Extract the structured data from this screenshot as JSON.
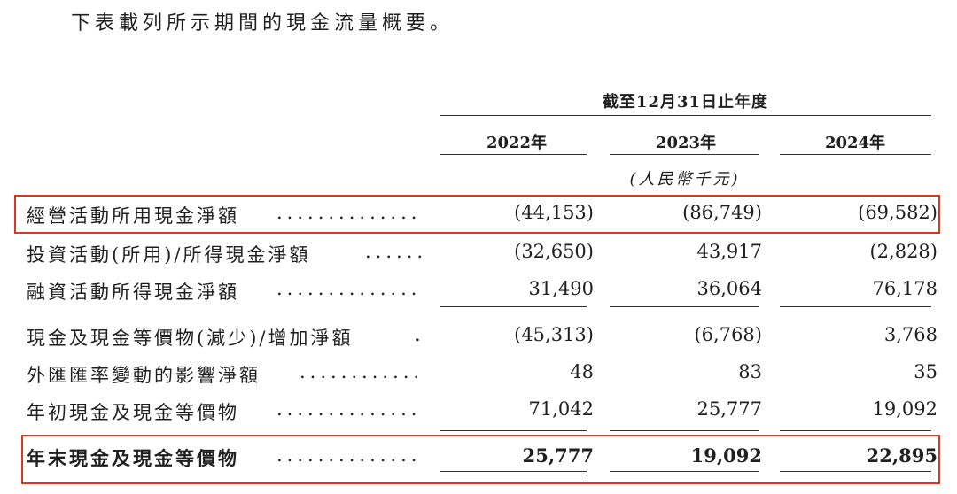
{
  "intro": "下表載列所示期間的現金流量概要。",
  "period_header": "截至12月31日止年度",
  "columns": [
    "2022年",
    "2023年",
    "2024年"
  ],
  "unit": "(人民幣千元)",
  "rows": [
    {
      "label": "經營活動所用現金淨額",
      "dots": "..............",
      "values": [
        "(44,153)",
        "(86,749)",
        "(69,582)"
      ],
      "highlighted": true,
      "bold": false
    },
    {
      "label": "投資活動(所用)/所得現金淨額",
      "dots": "......",
      "values": [
        "(32,650)",
        "43,917",
        "(2,828)"
      ],
      "highlighted": false,
      "bold": false
    },
    {
      "label": "融資活動所得現金淨額",
      "dots": "..............",
      "values": [
        "31,490",
        "36,064",
        "76,178"
      ],
      "highlighted": false,
      "bold": false
    },
    {
      "label": "現金及現金等價物(減少)/增加淨額",
      "dots": ".",
      "values": [
        "(45,313)",
        "(6,768)",
        "3,768"
      ],
      "highlighted": false,
      "bold": false
    },
    {
      "label": "外匯匯率變動的影響淨額",
      "dots": "............",
      "values": [
        "48",
        "83",
        "35"
      ],
      "highlighted": false,
      "bold": false
    },
    {
      "label": "年初現金及現金等價物",
      "dots": "..............",
      "values": [
        "71,042",
        "25,777",
        "19,092"
      ],
      "highlighted": false,
      "bold": false
    },
    {
      "label": "年末現金及現金等價物",
      "dots": "..............",
      "values": [
        "25,777",
        "19,092",
        "22,895"
      ],
      "highlighted": true,
      "bold": true
    }
  ],
  "highlight_color": "#d93a1f"
}
